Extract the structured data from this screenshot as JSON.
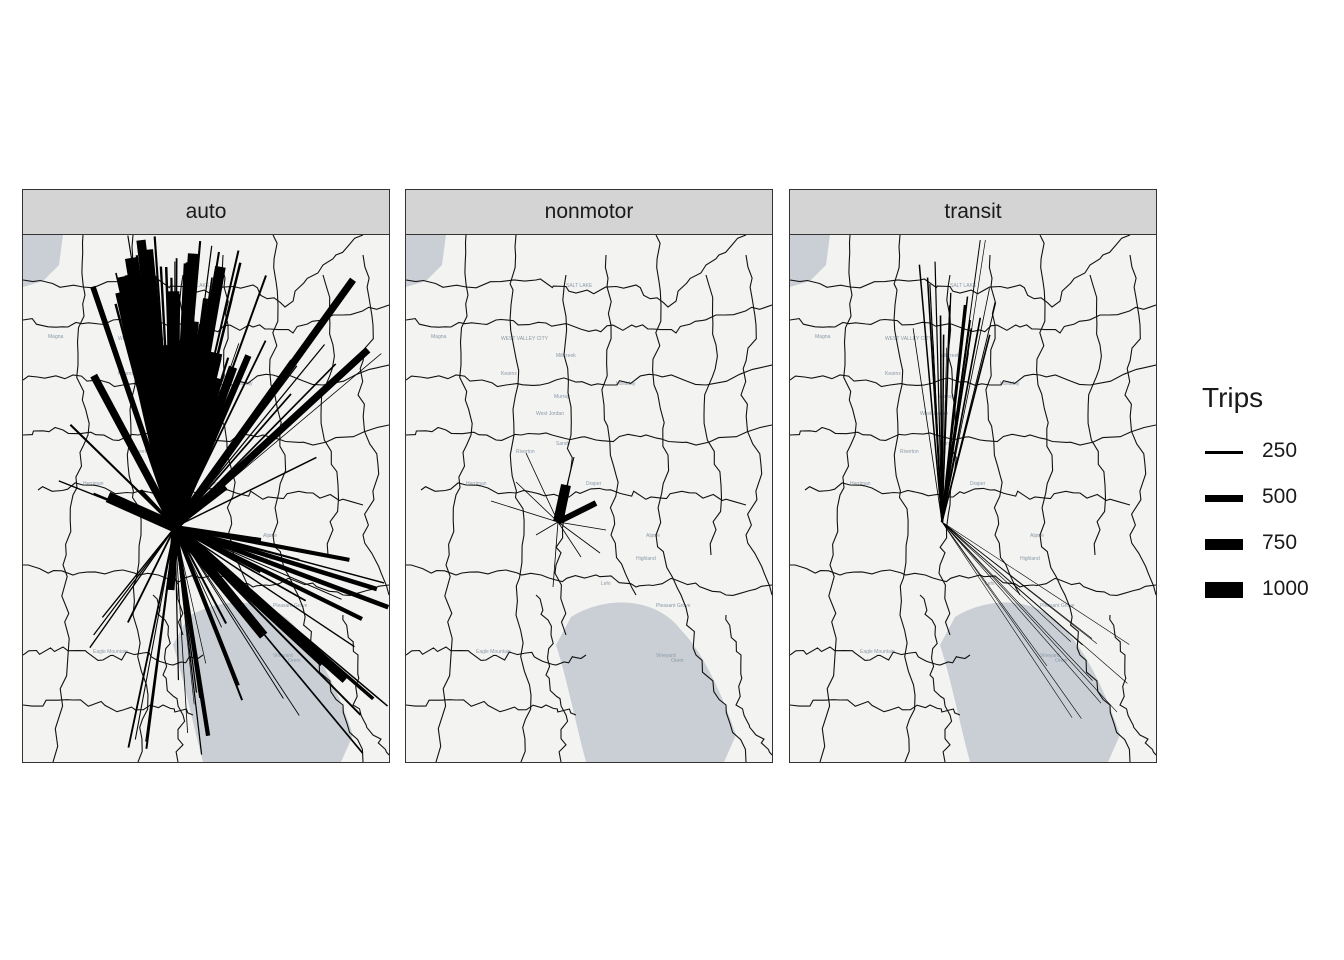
{
  "panels": [
    {
      "id": "auto",
      "label": "auto"
    },
    {
      "id": "nonmotor",
      "label": "nonmotor"
    },
    {
      "id": "transit",
      "label": "transit"
    }
  ],
  "legend": {
    "title": "Trips",
    "entries": [
      {
        "label": "250",
        "value": 250
      },
      {
        "label": "500",
        "value": 500
      },
      {
        "label": "750",
        "value": 750
      },
      {
        "label": "1000",
        "value": 1000
      }
    ]
  },
  "basemap_labels": [
    "SALT LAKE",
    "WEST VALLEY CITY",
    "Magna",
    "Kearns",
    "Millcreek",
    "Holladay",
    "Murray",
    "West Jordan",
    "Sandy",
    "Riverton",
    "Herriman",
    "Draper",
    "Alpine",
    "Highland",
    "Lehi",
    "Pleasant Grove",
    "Eagle Mountain",
    "Vineyard",
    "Orem"
  ],
  "colors": {
    "flow": "#000000",
    "land": "#f3f3f1",
    "water": "#c9cfd4",
    "boundary": "#111111",
    "strip": "#d4d4d4"
  }
}
